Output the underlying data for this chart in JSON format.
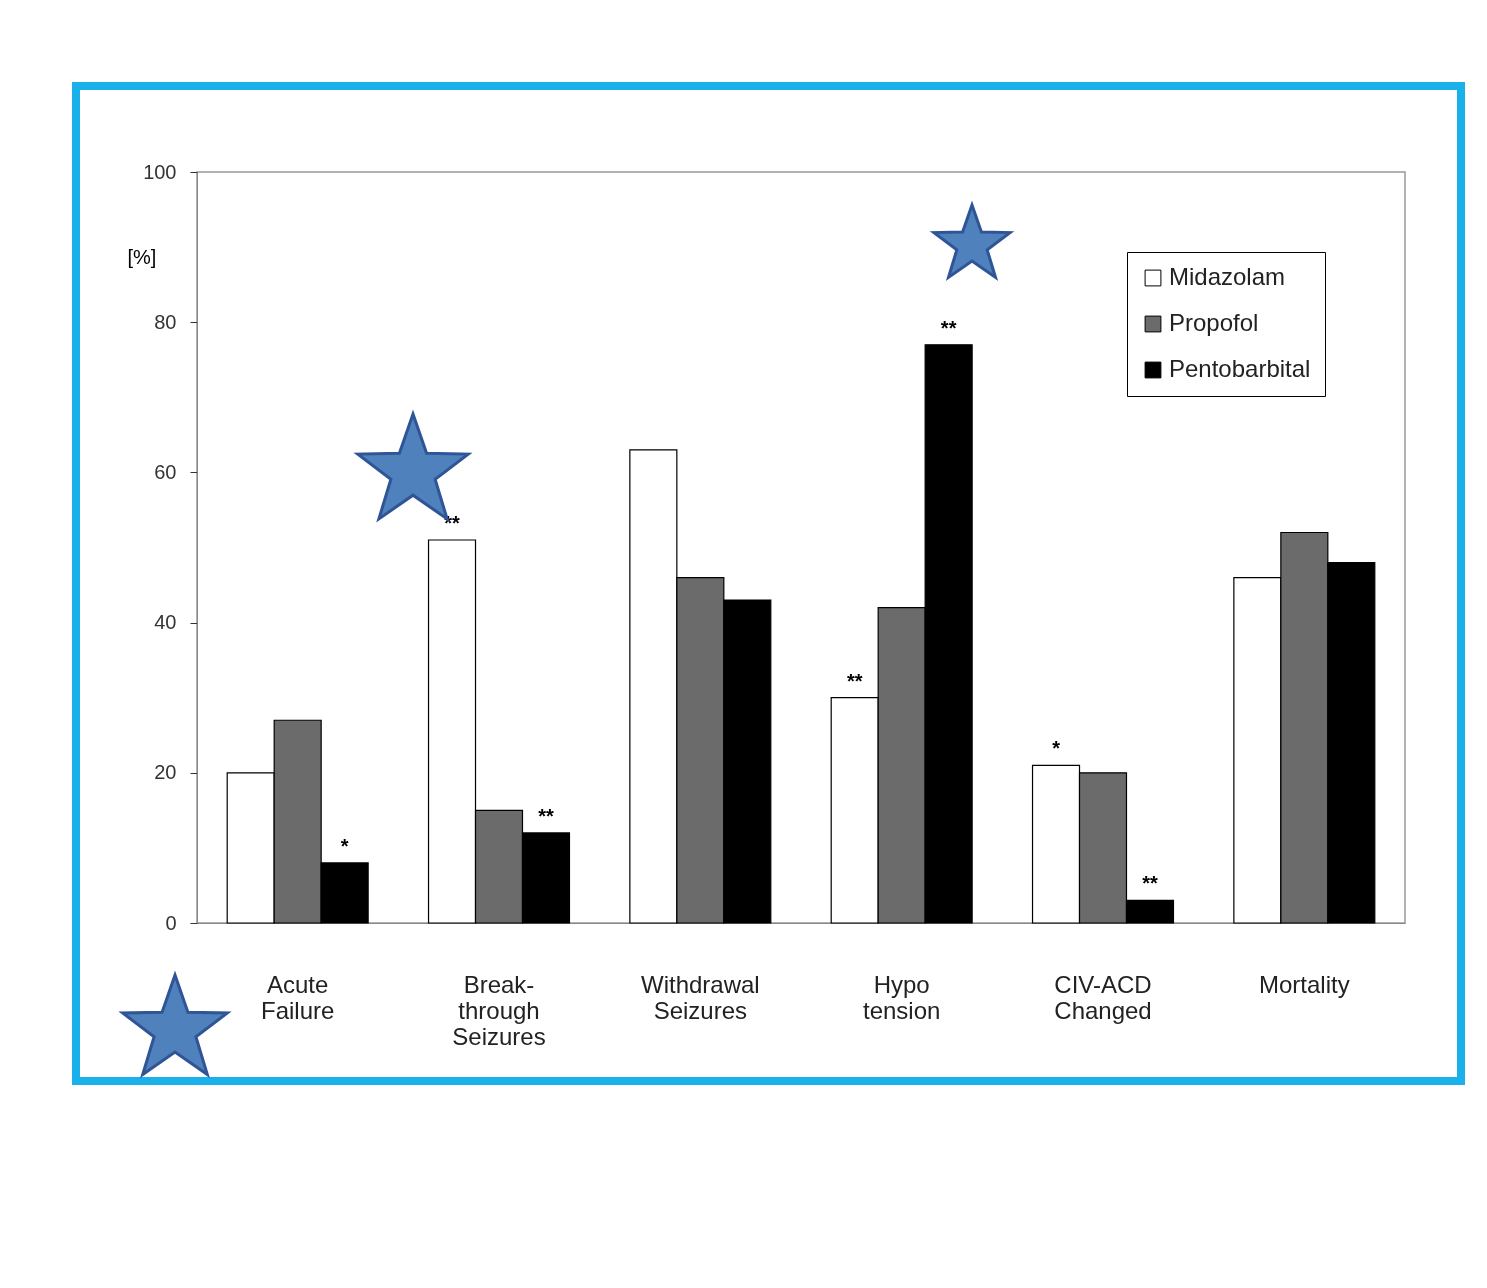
{
  "chart_data": {
    "type": "bar",
    "ylabel": "[%]",
    "categories": [
      "Acute\nFailure",
      "Break-\nthrough\nSeizures",
      "Withdrawal\nSeizures",
      "Hypo\ntension",
      "CIV-ACD\nChanged",
      "Mortality"
    ],
    "series": [
      {
        "name": "Midazolam",
        "color": "#ffffff",
        "values": [
          20,
          51,
          63,
          30,
          21,
          46
        ],
        "value_labels": [
          null,
          "**",
          null,
          "**",
          "*",
          null
        ]
      },
      {
        "name": "Propofol",
        "color": "#6b6b6b",
        "values": [
          27,
          15,
          46,
          42,
          20,
          52
        ]
      },
      {
        "name": "Pentobarbital",
        "color": "#000000",
        "values": [
          8,
          12,
          43,
          77,
          3,
          48
        ],
        "value_labels": [
          "*",
          "**",
          null,
          "**",
          "**",
          null
        ]
      }
    ],
    "ylim": [
      0,
      100
    ],
    "yticks": [
      0,
      20,
      40,
      60,
      80,
      100
    ],
    "legend": "top right",
    "grid": false
  }
}
